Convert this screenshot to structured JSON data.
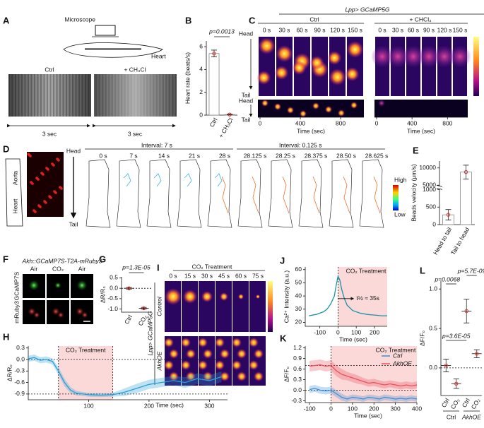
{
  "figure": {
    "panel_labels": [
      "A",
      "B",
      "C",
      "D",
      "E",
      "F",
      "G",
      "H",
      "I",
      "J",
      "K",
      "L"
    ],
    "a": {
      "microscope": "Microscope",
      "heart": "Heart",
      "conditions": [
        "Ctrl",
        "+ CH₃Cl"
      ],
      "durations": [
        "3 sec",
        "3 sec"
      ]
    },
    "c": {
      "genotype": "Lpp> GCaMP5G",
      "conditions": [
        "Ctrl",
        "+ CHCl₃"
      ],
      "times": [
        "0 s",
        "30 s",
        "60 s",
        "90 s",
        "120 s",
        "150 s"
      ],
      "head": "Head",
      "tail": "Tail",
      "time_ticks": [
        "0",
        "400",
        "800"
      ],
      "time_label": "Time (sec)"
    },
    "d": {
      "head": "Head",
      "tail": "Tail",
      "aorta": "Aorta",
      "heart": "Heart",
      "intervals": [
        "Interval:  7 s",
        "Interval:  0.125 s"
      ],
      "times": [
        "0 s",
        "7 s",
        "14 s",
        "21 s",
        "28 s",
        "28.125 s",
        "28.25 s",
        "28.375 s",
        "28.50 s",
        "28.625 s"
      ],
      "high": "High",
      "low": "Low"
    },
    "f": {
      "genotype": "Akh::GCaMP7S-T2A-mRuby3",
      "conditions": [
        "Air",
        "CO₂",
        "Air"
      ],
      "channels": [
        "GCaMP7S",
        "mRuby3"
      ]
    },
    "i": {
      "treatment": "CO₂ Treatment",
      "times": [
        "0 s",
        "15 s",
        "30 s",
        "45 s",
        "60 s",
        "75 s"
      ],
      "genotype": "Lpp> GCaMP5G",
      "groups": [
        "Control",
        "AkhOE"
      ]
    }
  },
  "chart_data": [
    {
      "type": "bar",
      "ylabel": "Heart rate (beats/s)",
      "categories": [
        "Ctrl",
        "+ CH₃Cl"
      ],
      "values": [
        5.4,
        0.05
      ],
      "errors": [
        0.3,
        0.03
      ],
      "color": "#e0302f",
      "ylim": [
        0,
        6.5
      ],
      "yticks": [
        0,
        2,
        4,
        6
      ],
      "pvalue": "p=0.0013"
    },
    {
      "type": "bar",
      "ylabel": "Beads velocity (μm/s)",
      "categories": [
        "Head to tail",
        "Tail to head"
      ],
      "values": [
        280,
        8800
      ],
      "errors": [
        150,
        2000
      ],
      "color": "#e0302f",
      "ylim": [
        0,
        12000
      ],
      "axis_break": [
        1000,
        5000
      ],
      "yticks": [
        0,
        500,
        1000,
        5000,
        10000
      ]
    },
    {
      "type": "strip",
      "ylabel": "ΔR/R₀",
      "categories": [
        "Ctrl",
        "CO₂"
      ],
      "values": [
        0.0,
        -0.96
      ],
      "errors": [
        0.04,
        0.04
      ],
      "color": "#e0302f",
      "ylim": [
        -1.15,
        0.55
      ],
      "yticks": [
        0.5,
        {
          "value": 0,
          "label": "0.0"
        },
        -0.5,
        {
          "value": -1,
          "label": "-1.0"
        }
      ],
      "ref_lines": [
        0
      ],
      "pvalue": "p=1.3E-05"
    },
    {
      "type": "line",
      "ylabel": "ΔR/R₀",
      "xlabel": "Time (sec)",
      "treatment_label": "CO₂ Treatment",
      "treatment": [
        50,
        140
      ],
      "x": [
        0,
        10,
        20,
        30,
        40,
        50,
        60,
        70,
        80,
        100,
        120,
        140,
        160,
        180,
        200,
        220,
        240,
        260,
        280,
        300,
        320
      ],
      "series": [
        {
          "name": "ΔR/R₀",
          "color": "#2a9fd6",
          "values": [
            0.02,
            0.05,
            -0.02,
            0.0,
            -0.05,
            -0.3,
            -0.6,
            -0.8,
            -0.88,
            -0.92,
            -0.93,
            -0.92,
            -0.85,
            -0.75,
            -0.65,
            -0.6,
            -0.55,
            -0.6,
            -0.5,
            -0.55,
            -0.45
          ],
          "errors": [
            0.08,
            0.08,
            0.08,
            0.08,
            0.08,
            0.1,
            0.1,
            0.08,
            0.06,
            0.05,
            0.05,
            0.05,
            0.1,
            0.12,
            0.12,
            0.12,
            0.12,
            0.14,
            0.14,
            0.14,
            0.14
          ]
        }
      ],
      "xlim": [
        0,
        330
      ],
      "xticks": [
        100,
        200,
        300
      ],
      "ylim": [
        -1.05,
        0.35
      ],
      "yticks": [
        0.3,
        {
          "value": 0,
          "label": "0.0"
        },
        -0.3,
        -0.6,
        -0.9
      ],
      "ref_lines": [
        0,
        -0.9
      ]
    },
    {
      "type": "line",
      "ylabel": "Ca²⁺ Intensity (a.u.)",
      "xlabel": "Time (sec)",
      "treatment_label": "CO₂ Treatment",
      "treatment": [
        0,
        270
      ],
      "half_time_label": "t½ ≈ 35s",
      "x": [
        -160,
        -120,
        -80,
        -60,
        -40,
        -20,
        -10,
        0,
        10,
        20,
        35,
        50,
        80,
        120,
        160,
        200,
        240,
        270
      ],
      "series": [
        {
          "name": "Ca²⁺ Intensity",
          "color": "#1a93a6",
          "values": [
            25,
            26,
            28,
            30,
            34,
            40,
            48,
            55,
            52,
            45,
            38,
            33,
            29,
            27,
            26,
            25.5,
            25,
            25
          ]
        }
      ],
      "xlim": [
        -180,
        270
      ],
      "xticks": [
        -100,
        0,
        100,
        200
      ],
      "ylim": [
        17,
        62
      ],
      "yticks": [
        20,
        30,
        40,
        50,
        60
      ]
    },
    {
      "type": "line",
      "ylabel": "ΔF/F₀",
      "xlabel": "Time (sec)",
      "treatment_label": "CO₂ Treatment",
      "treatment": [
        0,
        400
      ],
      "legend": "upper right",
      "x": [
        -100,
        -75,
        -50,
        -25,
        0,
        25,
        50,
        75,
        100,
        125,
        150,
        175,
        200,
        225,
        250,
        275,
        300,
        325,
        350,
        375,
        400
      ],
      "series": [
        {
          "name": "Ctrl",
          "color": "#3a8fd4",
          "values": [
            0.02,
            0.05,
            0.0,
            -0.02,
            0.0,
            -0.1,
            -0.2,
            -0.25,
            -0.2,
            -0.22,
            -0.25,
            -0.2,
            -0.22,
            -0.25,
            -0.2,
            -0.22,
            -0.25,
            -0.23,
            -0.25,
            -0.22,
            -0.25
          ],
          "errors": [
            0.1,
            0.1,
            0.1,
            0.1,
            0.1,
            0.1,
            0.1,
            0.08,
            0.08,
            0.08,
            0.08,
            0.08,
            0.08,
            0.08,
            0.08,
            0.08,
            0.08,
            0.08,
            0.08,
            0.08,
            0.08
          ]
        },
        {
          "name": "AkhOE",
          "color": "#e8505b",
          "values": [
            0.68,
            0.7,
            0.72,
            0.68,
            0.7,
            0.55,
            0.45,
            0.4,
            0.35,
            0.3,
            0.25,
            0.2,
            0.22,
            0.18,
            0.15,
            0.18,
            0.15,
            0.12,
            0.15,
            0.12,
            0.15
          ],
          "errors": [
            0.15,
            0.15,
            0.15,
            0.15,
            0.15,
            0.15,
            0.15,
            0.12,
            0.12,
            0.12,
            0.1,
            0.1,
            0.1,
            0.1,
            0.1,
            0.1,
            0.1,
            0.1,
            0.1,
            0.1,
            0.1
          ]
        }
      ],
      "xlim": [
        -120,
        400
      ],
      "xticks": [
        -100,
        0,
        100,
        200,
        300,
        400
      ],
      "ylim": [
        -0.35,
        1.25
      ],
      "yticks": [
        -0.3,
        {
          "value": 0,
          "label": "0.0"
        },
        0.3,
        0.6,
        0.9,
        1.2
      ],
      "ref_lines": [
        0,
        0.7
      ]
    },
    {
      "type": "strip",
      "ylabel": "ΔF/F₀",
      "categories": [
        "Ctrl",
        "CO₂",
        "Ctrl",
        "CO₂"
      ],
      "group_labels": [
        "Ctrl",
        "AkhOE"
      ],
      "values": [
        0.03,
        -0.2,
        0.72,
        0.18
      ],
      "errors": [
        0.08,
        0.06,
        0.15,
        0.05
      ],
      "color": "#e0302f",
      "ylim": [
        -0.35,
        1.1
      ],
      "yticks": [
        {
          "value": 0,
          "label": "0.0"
        },
        0.5,
        {
          "value": 1,
          "label": "1.0"
        }
      ],
      "ref_lines": [
        0
      ],
      "pvalues": [
        "p=0.0068",
        "p=5.7E-09",
        "p=3.6E-05"
      ]
    }
  ]
}
